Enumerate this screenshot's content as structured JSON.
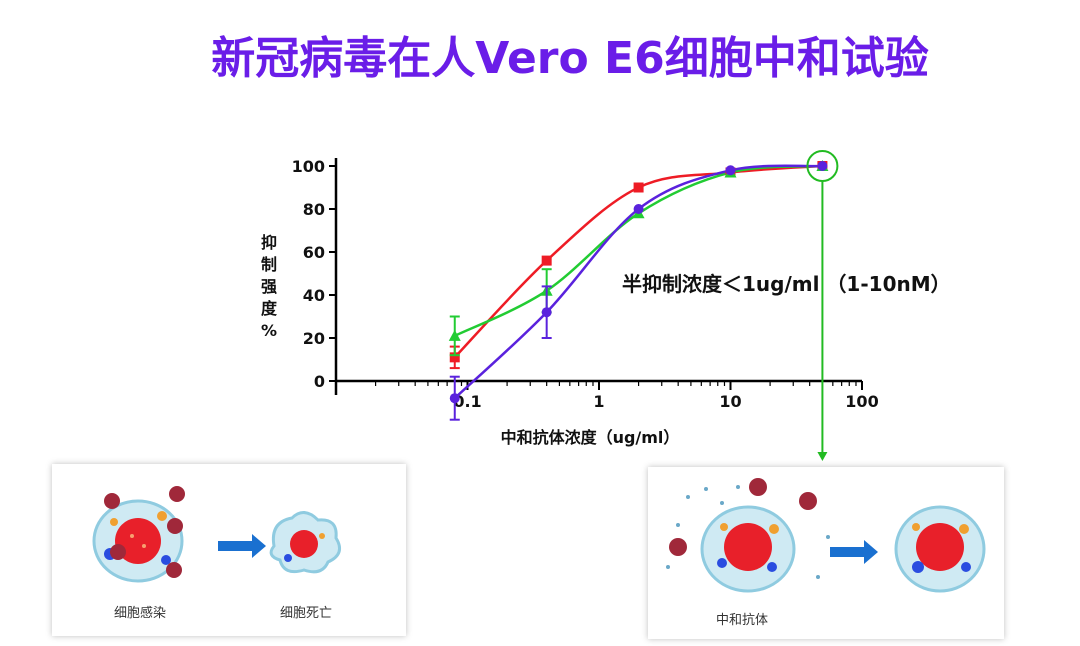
{
  "title": "新冠病毒在人Vero E6细胞中和试验",
  "annotation": "半抑制浓度＜1ug/ml （1-10nM）",
  "left_panel": {
    "label_infection": "细胞感染",
    "label_death": "细胞死亡"
  },
  "right_panel": {
    "label_antibody": "中和抗体"
  },
  "colors": {
    "title": "#6a1de8",
    "red": "#ee1c25",
    "green": "#22cc33",
    "purple": "#5a22dd",
    "highlight": "#22bb22",
    "arrow_blue": "#1a70d0"
  },
  "chart_data": {
    "type": "line",
    "xscale": "log",
    "xlabel": "中和抗体浓度（ug/ml）",
    "ylabel": "抑制强度%",
    "xlim": [
      0.01,
      100
    ],
    "ylim": [
      0,
      100
    ],
    "x_ticks": [
      "0.1",
      "1",
      "10",
      "100"
    ],
    "y_ticks": [
      "0",
      "20",
      "40",
      "60",
      "80",
      "100"
    ],
    "grid": false,
    "series": [
      {
        "color": "#ee1c25",
        "marker": "square",
        "x": [
          0.08,
          0.4,
          2,
          10,
          50
        ],
        "y": [
          11,
          56,
          90,
          97,
          100
        ],
        "err": [
          5,
          0,
          0,
          0,
          0
        ]
      },
      {
        "color": "#22cc33",
        "marker": "triangle",
        "x": [
          0.08,
          0.4,
          2,
          10,
          50
        ],
        "y": [
          21,
          42,
          78,
          97,
          100
        ],
        "err": [
          9,
          10,
          0,
          0,
          0
        ]
      },
      {
        "color": "#5a22dd",
        "marker": "circle",
        "x": [
          0.08,
          0.4,
          2,
          10,
          50
        ],
        "y": [
          -8,
          32,
          80,
          98,
          100
        ],
        "err": [
          10,
          12,
          0,
          0,
          0
        ]
      }
    ]
  }
}
